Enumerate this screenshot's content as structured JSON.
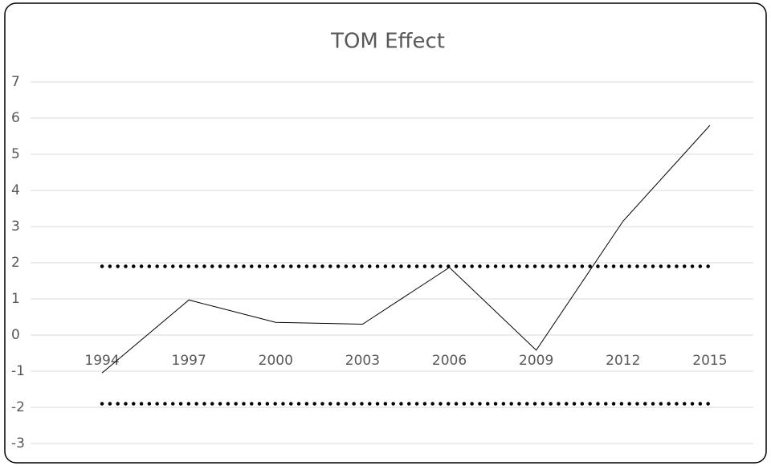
{
  "chart_data": {
    "type": "line",
    "title": "TOM Effect",
    "categories": [
      "1994",
      "1997",
      "2000",
      "2003",
      "2006",
      "2009",
      "2012",
      "2015"
    ],
    "series": [
      {
        "color": "#000000",
        "style": "solid",
        "values": [
          -1.05,
          0.97,
          0.35,
          0.3,
          1.87,
          -0.42,
          3.15,
          5.8
        ]
      },
      {
        "color": "#000000",
        "style": "dotted",
        "values": [
          1.9,
          1.9,
          1.9,
          1.9,
          1.9,
          1.9,
          1.9,
          1.9
        ]
      },
      {
        "color": "#000000",
        "style": "dotted",
        "values": [
          -1.9,
          -1.9,
          -1.9,
          -1.9,
          -1.9,
          -1.9,
          -1.9,
          -1.9
        ]
      }
    ],
    "ylim": [
      -3,
      7
    ],
    "yticks": [
      -3,
      -2,
      -1,
      0,
      1,
      2,
      3,
      4,
      5,
      6,
      7
    ],
    "grid": true
  }
}
